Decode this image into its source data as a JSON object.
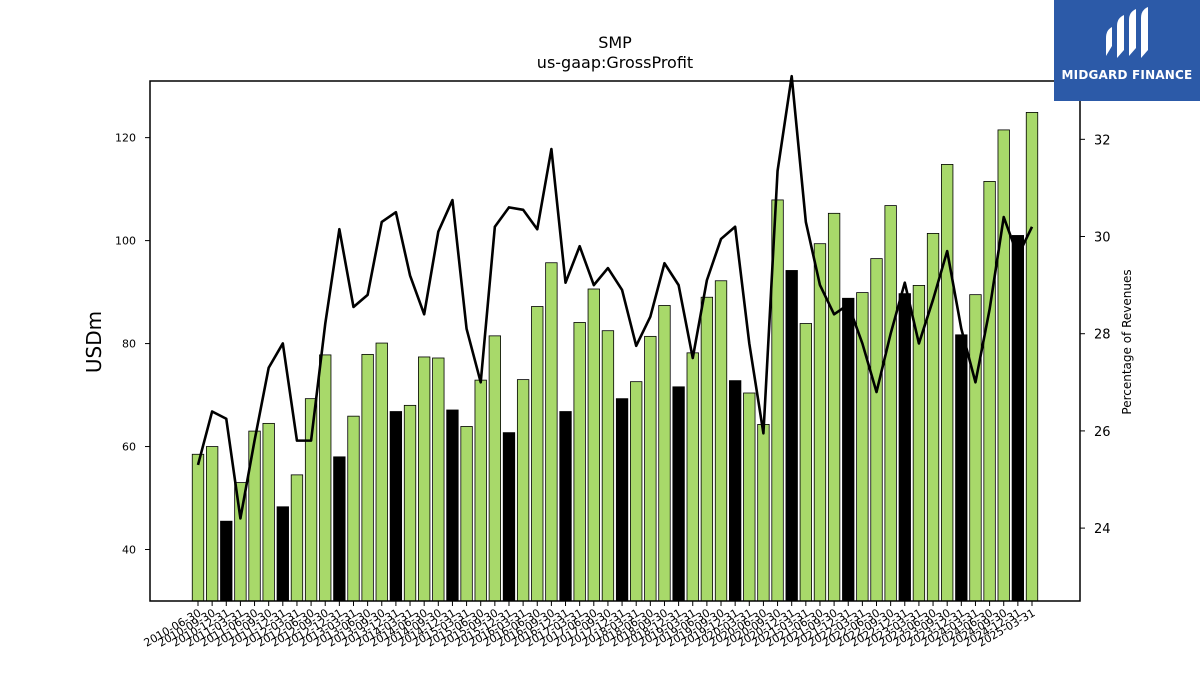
{
  "chart_data": {
    "type": "bar",
    "title": "SMP",
    "subtitle": "us-gaap:GrossProfit",
    "ylabel": "USDm",
    "y2label": "Percentage of Revenues",
    "ylim": [
      30,
      131
    ],
    "y2lim": [
      22.5,
      33.2
    ],
    "yticks": [
      40,
      60,
      80,
      100,
      120
    ],
    "y2ticks": [
      24,
      26,
      28,
      30,
      32
    ],
    "colors": {
      "bar": "#a8d96a",
      "bar_q4": "#000000",
      "line": "#000000"
    },
    "categories": [
      "2010-06-30",
      "2010-09-30",
      "2010-12-31",
      "2011-03-31",
      "2011-06-30",
      "2011-09-30",
      "2011-12-31",
      "2012-03-31",
      "2012-06-30",
      "2012-09-30",
      "2012-12-31",
      "2013-03-31",
      "2013-06-30",
      "2013-09-30",
      "2013-12-31",
      "2014-03-31",
      "2014-06-30",
      "2014-09-30",
      "2014-12-31",
      "2015-03-31",
      "2015-06-30",
      "2015-09-30",
      "2015-12-31",
      "2016-03-31",
      "2016-06-30",
      "2016-09-30",
      "2016-12-31",
      "2017-03-31",
      "2017-06-30",
      "2017-09-30",
      "2017-12-31",
      "2018-03-31",
      "2018-06-30",
      "2018-09-30",
      "2018-12-31",
      "2019-03-31",
      "2019-06-30",
      "2019-09-30",
      "2019-12-31",
      "2020-03-31",
      "2020-06-30",
      "2020-09-30",
      "2020-12-31",
      "2021-03-31",
      "2021-06-30",
      "2021-09-30",
      "2021-12-31",
      "2022-03-31",
      "2022-06-30",
      "2022-09-30",
      "2022-12-31",
      "2023-03-31",
      "2023-06-30",
      "2023-09-30",
      "2023-12-31",
      "2024-03-31",
      "2024-06-30",
      "2024-09-30",
      "2024-12-31",
      "2025-03-31"
    ],
    "series": [
      {
        "type": "bar",
        "values": [
          58.5,
          60,
          45.5,
          53,
          63,
          64.5,
          48.3,
          54.5,
          69.3,
          77.8,
          58,
          65.9,
          77.9,
          80.1,
          66.8,
          68,
          77.4,
          77.2,
          67.1,
          63.9,
          72.9,
          81.5,
          62.7,
          73,
          87.2,
          95.7,
          66.8,
          84.1,
          90.6,
          82.5,
          69.3,
          72.6,
          81.4,
          87.4,
          71.6,
          78.2,
          89,
          92.2,
          72.8,
          70.4,
          64.3,
          107.9,
          94.2,
          83.9,
          99.4,
          105.3,
          88.8,
          89.9,
          96.5,
          106.8,
          89.7,
          91.3,
          101.4,
          114.8,
          81.7,
          89.5,
          111.5,
          121.5,
          101,
          124.9
        ],
        "q4": [
          false,
          false,
          true,
          false,
          false,
          false,
          true,
          false,
          false,
          false,
          true,
          false,
          false,
          false,
          true,
          false,
          false,
          false,
          true,
          false,
          false,
          false,
          true,
          false,
          false,
          false,
          true,
          false,
          false,
          false,
          true,
          false,
          false,
          false,
          true,
          false,
          false,
          false,
          true,
          false,
          false,
          false,
          true,
          false,
          false,
          false,
          true,
          false,
          false,
          false,
          true,
          false,
          false,
          false,
          true,
          false,
          false,
          false,
          true,
          false
        ]
      },
      {
        "type": "line",
        "axis": "right",
        "values": [
          25.3,
          26.4,
          26.25,
          24.2,
          25.8,
          27.3,
          27.8,
          25.8,
          25.8,
          28.2,
          30.15,
          28.55,
          28.8,
          30.3,
          30.5,
          29.2,
          28.4,
          30.1,
          30.75,
          28.1,
          27.0,
          30.2,
          30.6,
          30.55,
          30.15,
          31.8,
          29.05,
          29.8,
          29.0,
          29.35,
          28.9,
          27.75,
          28.35,
          29.45,
          29.0,
          27.5,
          29.1,
          29.95,
          30.2,
          27.8,
          25.95,
          31.35,
          33.3,
          30.3,
          29.0,
          28.4,
          28.6,
          27.8,
          26.8,
          28.0,
          29.05,
          27.8,
          28.7,
          29.7,
          28.1,
          27.0,
          28.5,
          30.4,
          29.6,
          30.2
        ]
      }
    ],
    "x_ticklabels": [
      "2010-06-30",
      "2010-09-30",
      "2010-12-31",
      "2011-03-31",
      "2011-06-30",
      "2011-09-30",
      "2011-12-31",
      "2012-03-31",
      "2012-06-30",
      "2012-09-30",
      "2012-12-31",
      "2013-03-31",
      "2013-06-30",
      "2013-09-30",
      "2013-12-31",
      "2014-03-31",
      "2014-06-30",
      "2014-09-30",
      "2014-12-31",
      "2015-03-31",
      "2015-06-30",
      "2015-09-30",
      "2015-12-31",
      "2016-03-31",
      "2016-06-30",
      "2016-09-30",
      "2016-12-31",
      "2017-03-31",
      "2017-06-30",
      "2017-09-30",
      "2017-12-31",
      "2018-03-31",
      "2018-06-30",
      "2018-09-30",
      "2018-12-31",
      "2019-03-31",
      "2019-06-30",
      "2019-09-30",
      "2019-12-31",
      "2020-03-31",
      "2020-06-30",
      "2020-09-30",
      "2020-12-31",
      "2021-03-31",
      "2021-06-30",
      "2021-09-30",
      "2021-12-31",
      "2022-03-31",
      "2022-06-30",
      "2022-09-30",
      "2022-12-31",
      "2023-03-31",
      "2023-06-30",
      "2023-09-30",
      "2023-12-31",
      "2024-03-31",
      "2024-06-30",
      "2024-09-30",
      "2024-12-31",
      "2025-03-31"
    ],
    "grid": false
  },
  "brand": {
    "name": "MIDGARD FINANCE",
    "bg_color": "#2c5aa8"
  }
}
